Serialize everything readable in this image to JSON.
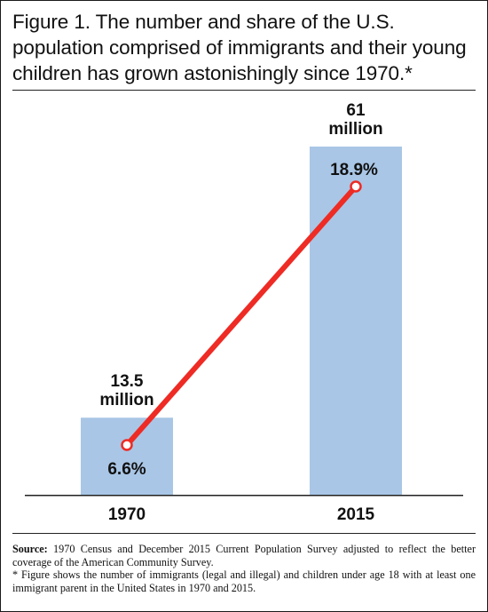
{
  "chart_data": {
    "type": "bar",
    "title": "Figure 1. The number and share of the U.S. population comprised of immigrants and their young children has grown astonishingly since 1970.*",
    "categories": [
      "1970",
      "2015"
    ],
    "series": [
      {
        "values": [
          13.5,
          61
        ],
        "unit": "million",
        "value_labels": [
          [
            "13.5",
            "million"
          ],
          [
            "61",
            "million"
          ]
        ]
      },
      {
        "values": [
          6.6,
          18.9
        ],
        "unit": "%",
        "value_labels": [
          "6.6%",
          "18.9%"
        ]
      }
    ],
    "xlabel": "",
    "ylabel": "",
    "grid": false,
    "legend": "none",
    "colors": {
      "bar": "#a9c6e6",
      "line": "#ee2b24",
      "marker_fill": "#ffffff",
      "text": "#111111"
    }
  },
  "footnote": {
    "source_label": "Source:",
    "source_text": " 1970 Census and December 2015 Current Population Survey adjusted to reflect the better coverage of the American Community Survey.",
    "note_text": "* Figure shows the number of immigrants (legal and illegal) and children under age 18 with at least one immigrant parent in the United States in 1970 and 2015."
  }
}
